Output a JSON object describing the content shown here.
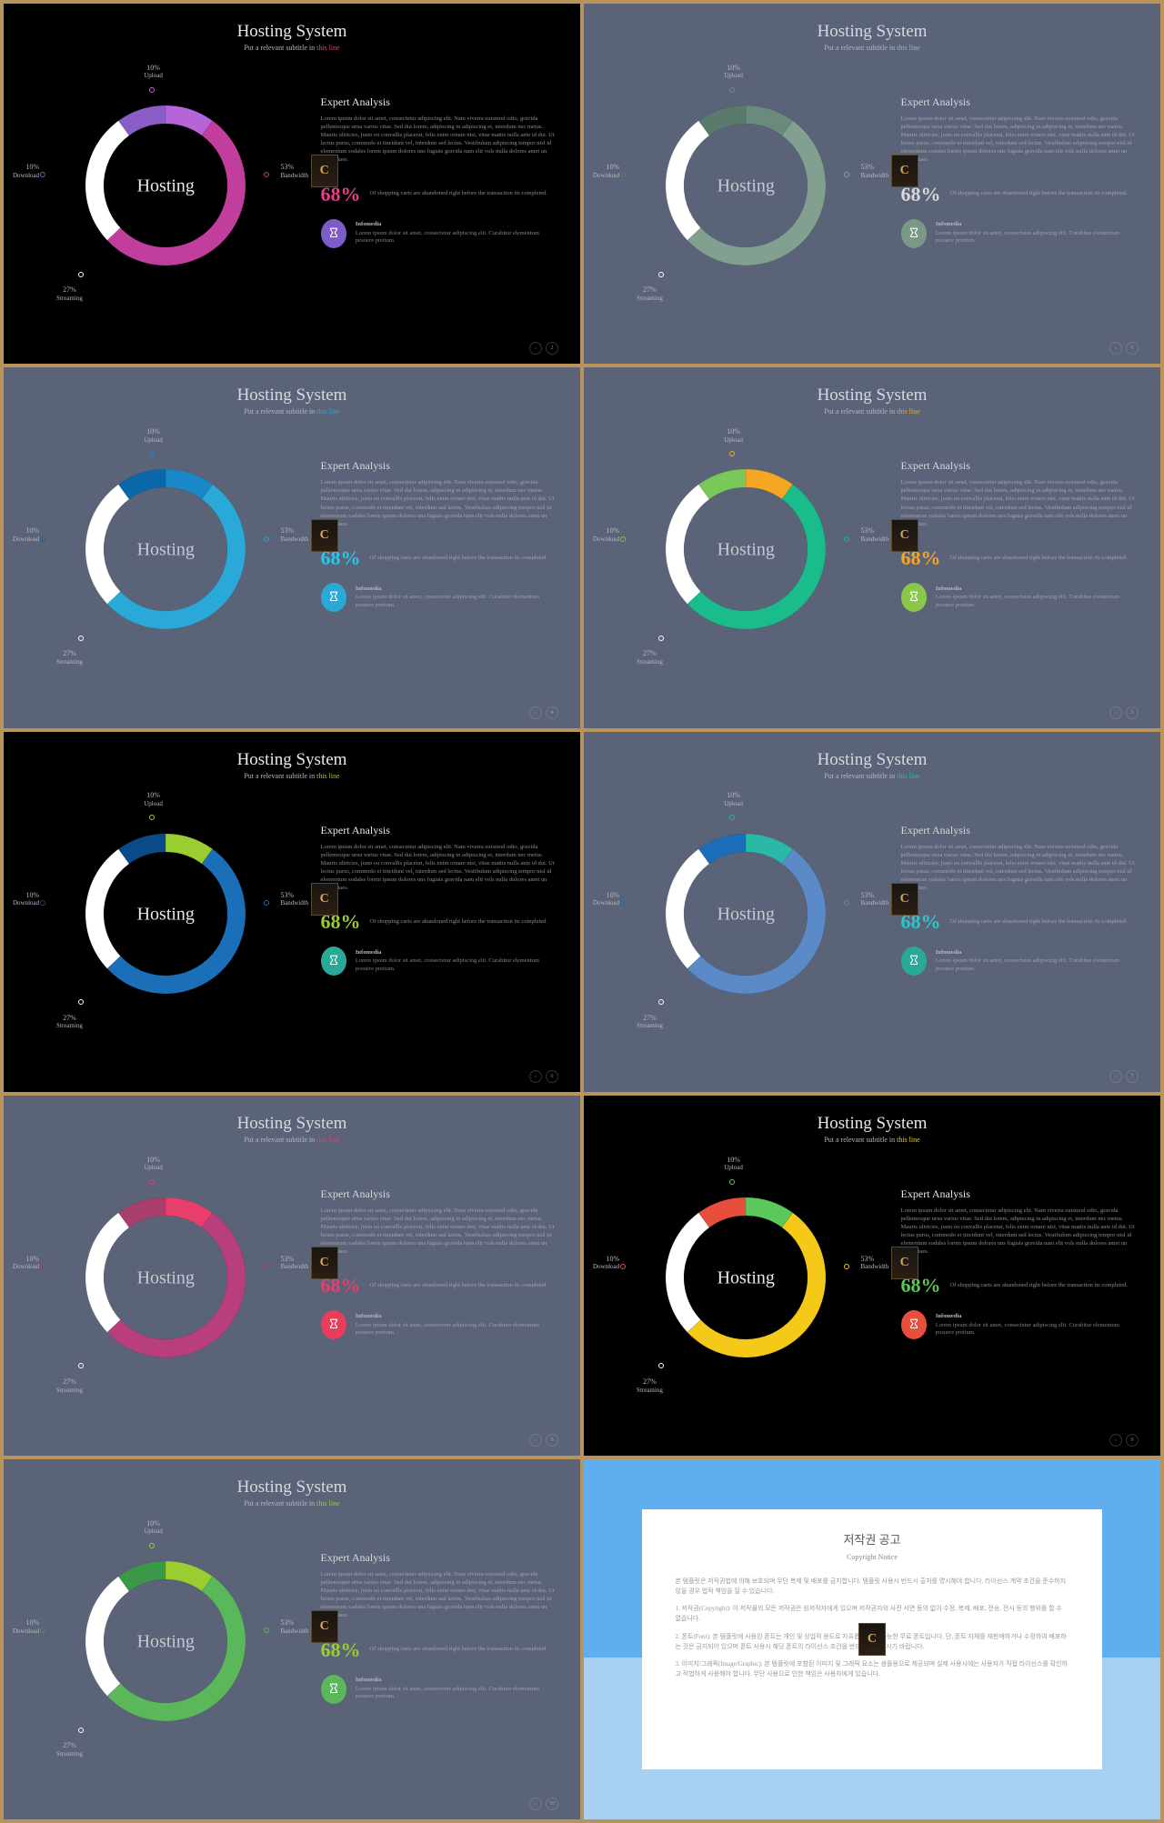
{
  "common": {
    "title": "Hosting System",
    "subtitle_prefix": "Put a relevant subtitle in ",
    "subtitle_accent": "this line",
    "center_label": "Hosting",
    "analysis_title": "Expert Analysis",
    "analysis_body": "Lorem ipsum dolor sit amet, consectetur adipiscing elit. Nam viverra euismod odio, gravida pellentesque urna varius vitae. Sed dui lorem, adipiscing in adipiscing et, interdum nec metus. Mauris ultricies, justo eu convallis placerat, felis enim ornare nisi, vitae mattis nulla ante id dui. Ut lectus purus, commodo et tincidunt vel, interdum sed lectus. Vestibulum adipiscing tempor nisl id elementum sodales lorem ipsum dolores uns fugiats gravida nam elit vols nulla dolores amet un etras vitaes.",
    "stat_pct": "68%",
    "stat_txt": "Of shopping carts are abandoned right before the transaction its completed.",
    "info_title": "Infomedia",
    "info_body": "Lorem ipsum dolor sit amet, consectetur adipiscing elit. Curabitur elementum posuere pretium.",
    "segments": [
      {
        "label": "Upload",
        "value": 10,
        "pct": "10%"
      },
      {
        "label": "Bandwidth",
        "value": 53,
        "pct": "53%"
      },
      {
        "label": "Streaming",
        "value": 27,
        "pct": "27%"
      },
      {
        "label": "Download",
        "value": 10,
        "pct": "10%"
      }
    ],
    "badge_letter": "C",
    "pager_prev": "‹",
    "donut": {
      "outer_r": 88,
      "inner_r": 68
    }
  },
  "slides": [
    {
      "bg": "#000000",
      "title_color": "#e8e8ec",
      "accent": "#e83e8c",
      "seg_colors": [
        "#b565d8",
        "#c23e9c",
        "#ffffff",
        "#8a5cc8"
      ],
      "stat_color": "#e83e8c",
      "icon_bg": "#7c5cc8",
      "page": "2"
    },
    {
      "bg": "#5a6378",
      "title_color": "#d8d8dc",
      "accent": "#a0b8a8",
      "seg_colors": [
        "#6a8a7c",
        "#82a090",
        "#ffffff",
        "#5a7a6c"
      ],
      "stat_color": "#d8d8dc",
      "icon_bg": "#7a9888",
      "page": "5"
    },
    {
      "bg": "#5a6378",
      "title_color": "#d8d8dc",
      "accent": "#2aa8d8",
      "seg_colors": [
        "#1a88c8",
        "#2aa8d8",
        "#ffffff",
        "#0a68a8"
      ],
      "stat_color": "#2ac8e8",
      "icon_bg": "#2aa8d8",
      "page": "4"
    },
    {
      "bg": "#5a6378",
      "title_color": "#d8d8dc",
      "accent": "#f5a623",
      "seg_colors": [
        "#f5a623",
        "#1abc8c",
        "#ffffff",
        "#7bc85a"
      ],
      "stat_color": "#f5a623",
      "icon_bg": "#8bc84a",
      "page": "5"
    },
    {
      "bg": "#000000",
      "title_color": "#e8e8ec",
      "accent": "#9acd32",
      "seg_colors": [
        "#9acd32",
        "#1a6fb8",
        "#ffffff",
        "#0a4a88"
      ],
      "stat_color": "#9acd32",
      "icon_bg": "#2aa898",
      "page": "6"
    },
    {
      "bg": "#5a6378",
      "title_color": "#d8d8dc",
      "accent": "#2ab8a8",
      "seg_colors": [
        "#2ab8a8",
        "#5a8ac8",
        "#ffffff",
        "#1a6fb8"
      ],
      "stat_color": "#2ac8c8",
      "icon_bg": "#2aa898",
      "page": "7"
    },
    {
      "bg": "#5a6378",
      "title_color": "#d8d8dc",
      "accent": "#e83e6c",
      "seg_colors": [
        "#e83e6c",
        "#b83e7c",
        "#ffffff",
        "#a83e6c"
      ],
      "stat_color": "#e83e6c",
      "icon_bg": "#e83e5c",
      "page": "5"
    },
    {
      "bg": "#000000",
      "title_color": "#e8e8ec",
      "accent": "#f5c918",
      "seg_colors": [
        "#5ac85a",
        "#f5c918",
        "#ffffff",
        "#e84e3c"
      ],
      "stat_color": "#5ac85a",
      "icon_bg": "#e84e3c",
      "page": "9"
    },
    {
      "bg": "#5a6378",
      "title_color": "#d8d8dc",
      "accent": "#9acd32",
      "seg_colors": [
        "#9acd32",
        "#5ab85a",
        "#ffffff",
        "#3a9848"
      ],
      "stat_color": "#9acd32",
      "icon_bg": "#5ab85a",
      "page": "10"
    }
  ],
  "copyright": {
    "title": "저작권 공고",
    "subtitle": "Copyright Notice",
    "lines": [
      "본 템플릿은 저작권법에 의해 보호되며 무단 복제 및 배포를 금지합니다. 템플릿 사용시 반드시 출처를 명시해야 합니다. 라이선스 계약 조건을 준수하지 않을 경우 법적 책임을 질 수 있습니다.",
      "1. 저작권(Copyright): 이 저작물의 모든 저작권은 원저작자에게 있으며 저작권자의 사전 서면 동의 없이 수정, 복제, 배포, 전송, 전시 등의 행위를 할 수 없습니다.",
      "2. 폰트(Font): 본 템플릿에 사용된 폰트는 개인 및 상업적 용도로 자유롭게 사용 가능한 무료 폰트입니다. 단, 폰트 자체를 재판매하거나 수정하여 배포하는 것은 금지되어 있으며 폰트 사용시 해당 폰트의 라이선스 조건을 반드시 확인하시기 바랍니다.",
      "3. 이미지/그래픽(Image/Graphic): 본 템플릿에 포함된 이미지 및 그래픽 요소는 샘플용으로 제공되며 실제 사용시에는 사용자가 직접 라이선스를 확인하고 적법하게 사용해야 합니다. 무단 사용으로 인한 책임은 사용자에게 있습니다."
    ]
  }
}
